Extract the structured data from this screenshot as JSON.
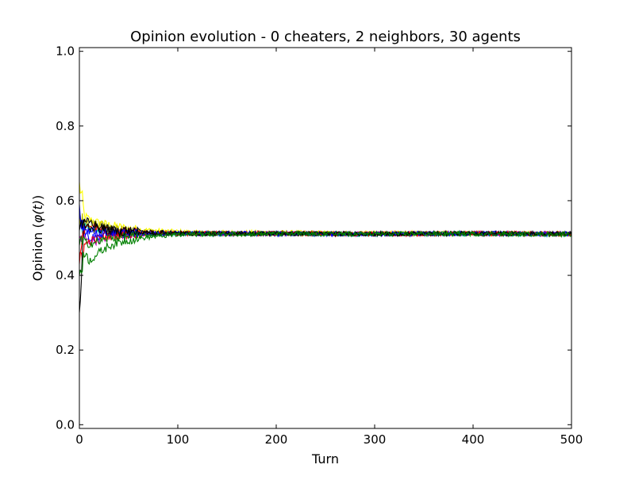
{
  "chart_data": {
    "type": "line",
    "title": "Opinion evolution - 0 cheaters, 2 neighbors, 30 agents",
    "xlabel": "Turn",
    "ylabel_prefix": "Opinion (",
    "ylabel_symbol": "φ(t)",
    "ylabel_suffix": ")",
    "xlim": [
      0,
      500
    ],
    "ylim": [
      -0.01,
      1.01
    ],
    "xticks": [
      0,
      100,
      200,
      300,
      400,
      500
    ],
    "xtick_labels": [
      "0",
      "100",
      "200",
      "300",
      "400",
      "500"
    ],
    "yticks": [
      0.0,
      0.2,
      0.4,
      0.6,
      0.8,
      1.0
    ],
    "ytick_labels": [
      "0.0",
      "0.2",
      "0.4",
      "0.6",
      "0.8",
      "1.0"
    ],
    "grid": false,
    "legend": "none",
    "agent_count": 30,
    "colors": [
      "#0000ff",
      "#008000",
      "#ff0000",
      "#00bfbf",
      "#bf00bf",
      "#bfbf00",
      "#000000"
    ],
    "series": [
      {
        "color": "#ffff00",
        "start": 0.65,
        "x": [
          0,
          5,
          10,
          20,
          30,
          50,
          80,
          120,
          200,
          300,
          400,
          500
        ],
        "y": [
          0.65,
          0.56,
          0.55,
          0.54,
          0.535,
          0.525,
          0.52,
          0.515,
          0.515,
          0.513,
          0.513,
          0.512
        ]
      },
      {
        "color": "#000000",
        "start": 0.3,
        "x": [
          0,
          5,
          10,
          20,
          30,
          50,
          80,
          120,
          200,
          300,
          400,
          500
        ],
        "y": [
          0.3,
          0.54,
          0.545,
          0.53,
          0.525,
          0.52,
          0.515,
          0.512,
          0.512,
          0.511,
          0.512,
          0.511
        ]
      },
      {
        "color": "#0000ff",
        "start": 0.59,
        "x": [
          0,
          5,
          10,
          20,
          30,
          50,
          80,
          120,
          200,
          300,
          400,
          500
        ],
        "y": [
          0.59,
          0.52,
          0.5,
          0.505,
          0.51,
          0.512,
          0.512,
          0.512,
          0.512,
          0.511,
          0.512,
          0.511
        ]
      },
      {
        "color": "#008000",
        "start": 0.4,
        "x": [
          0,
          5,
          10,
          20,
          30,
          50,
          80,
          120,
          200,
          300,
          400,
          500
        ],
        "y": [
          0.4,
          0.46,
          0.44,
          0.46,
          0.48,
          0.495,
          0.505,
          0.51,
          0.511,
          0.511,
          0.511,
          0.51
        ]
      },
      {
        "color": "#ff0000",
        "start": 0.45,
        "x": [
          0,
          5,
          10,
          20,
          30,
          50,
          80,
          120,
          200,
          300,
          400,
          500
        ],
        "y": [
          0.45,
          0.48,
          0.49,
          0.5,
          0.505,
          0.51,
          0.512,
          0.512,
          0.512,
          0.511,
          0.512,
          0.511
        ]
      },
      {
        "color": "#bf00bf",
        "start": 0.5,
        "x": [
          0,
          5,
          10,
          20,
          30,
          50,
          80,
          120,
          200,
          300,
          400,
          500
        ],
        "y": [
          0.5,
          0.5,
          0.49,
          0.495,
          0.505,
          0.51,
          0.512,
          0.512,
          0.512,
          0.511,
          0.512,
          0.511
        ]
      },
      {
        "color": "#00bfbf",
        "start": 0.55,
        "x": [
          0,
          5,
          10,
          20,
          30,
          50,
          80,
          120,
          200,
          300,
          400,
          500
        ],
        "y": [
          0.55,
          0.53,
          0.525,
          0.52,
          0.515,
          0.512,
          0.512,
          0.511,
          0.511,
          0.51,
          0.511,
          0.509
        ]
      },
      {
        "color": "#bfbf00",
        "start": 0.53,
        "x": [
          0,
          5,
          10,
          20,
          30,
          50,
          80,
          120,
          200,
          300,
          400,
          500
        ],
        "y": [
          0.53,
          0.545,
          0.54,
          0.535,
          0.53,
          0.52,
          0.515,
          0.513,
          0.512,
          0.512,
          0.512,
          0.511
        ]
      },
      {
        "color": "#ff0000",
        "start": 0.43,
        "x": [
          0,
          5,
          10,
          20,
          30,
          50,
          80,
          120,
          200,
          300,
          400,
          500
        ],
        "y": [
          0.43,
          0.52,
          0.53,
          0.525,
          0.52,
          0.515,
          0.513,
          0.512,
          0.512,
          0.511,
          0.512,
          0.511
        ]
      },
      {
        "color": "#0000ff",
        "start": 0.57,
        "x": [
          0,
          5,
          10,
          20,
          30,
          50,
          80,
          120,
          200,
          300,
          400,
          500
        ],
        "y": [
          0.57,
          0.53,
          0.52,
          0.515,
          0.513,
          0.512,
          0.512,
          0.512,
          0.512,
          0.511,
          0.512,
          0.511
        ]
      },
      {
        "color": "#008000",
        "start": 0.48,
        "x": [
          0,
          5,
          10,
          20,
          30,
          50,
          80,
          120,
          200,
          300,
          400,
          500
        ],
        "y": [
          0.48,
          0.49,
          0.485,
          0.49,
          0.5,
          0.505,
          0.51,
          0.512,
          0.512,
          0.511,
          0.512,
          0.511
        ]
      },
      {
        "color": "#000000",
        "start": 0.52,
        "x": [
          0,
          5,
          10,
          20,
          30,
          50,
          80,
          120,
          200,
          300,
          400,
          500
        ],
        "y": [
          0.52,
          0.535,
          0.53,
          0.525,
          0.52,
          0.515,
          0.513,
          0.512,
          0.512,
          0.511,
          0.512,
          0.511
        ]
      }
    ]
  }
}
